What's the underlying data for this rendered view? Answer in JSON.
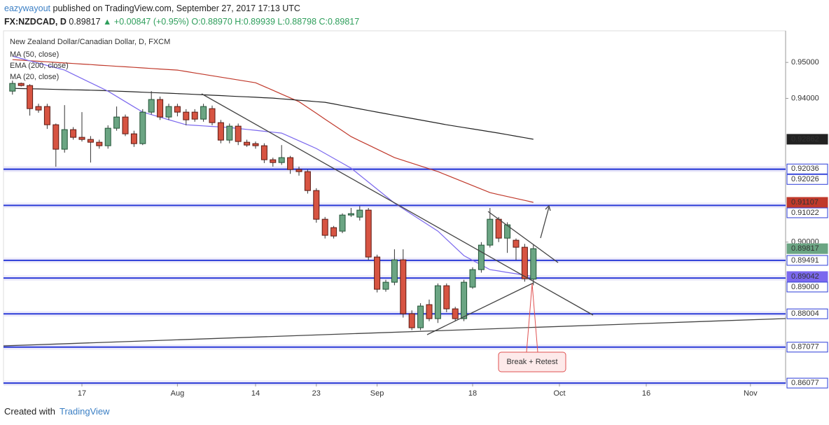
{
  "header": {
    "user": "eazywayout",
    "published": "published on TradingView.com, September 27, 2017 17:13 UTC",
    "symbol": "FX:NZDCAD, D",
    "price": "0.89817",
    "change": "▲ +0.00847 (+0.95%)",
    "ohlc": "O:0.88970 H:0.89939 L:0.88798 C:0.89817"
  },
  "footer": {
    "created": "Created with",
    "brand": "TradingView"
  },
  "chart_data": {
    "type": "candlestick",
    "title": "New Zealand Dollar/Canadian Dollar, D, FXCM",
    "annotation": "Break + Retest",
    "categories": [
      null,
      null,
      null,
      null,
      null,
      null,
      null,
      null,
      "17",
      null,
      null,
      null,
      null,
      null,
      null,
      null,
      null,
      null,
      null,
      "Aug",
      null,
      null,
      null,
      null,
      null,
      null,
      null,
      null,
      "14",
      null,
      null,
      null,
      null,
      null,
      null,
      "23",
      null,
      null,
      null,
      null,
      null,
      null,
      "Sep",
      null,
      null,
      null,
      null,
      null,
      null,
      null,
      null,
      null,
      null,
      "18",
      null,
      null,
      null,
      null,
      null,
      null,
      null,
      null,
      null,
      "Oct",
      null,
      null,
      null,
      null,
      null,
      null,
      null,
      null,
      null,
      "16",
      null,
      null,
      null,
      null,
      null,
      null,
      null,
      null,
      null,
      null,
      null,
      "Nov",
      null,
      null,
      null
    ],
    "open": [
      0.94201,
      0.94416,
      0.94357,
      0.93773,
      0.93773,
      0.93266,
      0.92585,
      0.9313,
      0.92916,
      0.92857,
      0.92779,
      0.92682,
      0.93169,
      0.93481,
      0.93013,
      0.9274,
      0.93617,
      0.93968,
      0.93481,
      0.93773,
      0.93617,
      0.93617,
      0.93422,
      0.93714,
      0.93325,
      0.92838,
      0.93227,
      0.92779,
      0.9274,
      0.92682,
      0.92292,
      0.92214,
      0.92351,
      0.9202,
      0.91961,
      0.91435,
      0.90636,
      0.90403,
      0.90305,
      0.90753,
      0.90695,
      0.9089,
      0.89585,
      0.88688,
      0.88883,
      0.89507,
      0.88007,
      0.87617,
      0.8826,
      0.8787,
      0.88786,
      0.88143,
      0.8787,
      0.88747,
      0.89234,
      0.89916,
      0.90636,
      0.9011,
      0.90052,
      0.89857,
      0.8897,
      null,
      null,
      null,
      null,
      null,
      null,
      null,
      null,
      null,
      null,
      null,
      null,
      null,
      null,
      null,
      null,
      null,
      null,
      null,
      null,
      null,
      null,
      null,
      null,
      null,
      null,
      null,
      null
    ],
    "high": [
      0.94494,
      0.9444,
      0.94396,
      0.9385,
      0.9385,
      0.933,
      0.93812,
      0.932,
      0.93617,
      0.9295,
      0.9285,
      0.9325,
      0.93773,
      0.9355,
      0.931,
      0.937,
      0.942,
      0.9405,
      0.9385,
      0.9385,
      0.937,
      0.937,
      0.9385,
      0.938,
      0.934,
      0.933,
      0.933,
      0.9285,
      0.928,
      0.9275,
      0.9235,
      0.927,
      0.924,
      0.921,
      0.9202,
      0.915,
      0.907,
      0.9045,
      0.908,
      0.9095,
      0.91,
      0.9095,
      0.8965,
      0.8895,
      0.898,
      0.898,
      0.881,
      0.883,
      0.884,
      0.8885,
      0.8885,
      0.882,
      0.8895,
      0.893,
      0.9,
      0.9095,
      0.907,
      0.9055,
      0.901,
      0.8995,
      0.89939,
      null,
      null,
      null,
      null,
      null,
      null,
      null,
      null,
      null,
      null,
      null,
      null,
      null,
      null,
      null,
      null,
      null,
      null,
      null,
      null,
      null,
      null,
      null,
      null,
      null,
      null,
      null,
      null
    ],
    "low": [
      0.94104,
      0.9433,
      0.9352,
      0.936,
      0.9315,
      0.92098,
      0.9249,
      0.9285,
      0.928,
      0.92214,
      0.926,
      0.926,
      0.931,
      0.9295,
      0.9265,
      0.927,
      0.9355,
      0.934,
      0.934,
      0.935,
      0.9325,
      0.9335,
      0.9335,
      0.9325,
      0.9275,
      0.9275,
      0.927,
      0.9265,
      0.926,
      0.922,
      0.921,
      0.9215,
      0.919,
      0.9185,
      0.9135,
      0.9054,
      0.901,
      0.901,
      0.9025,
      0.907,
      0.906,
      0.895,
      0.886,
      0.8862,
      0.888,
      0.879,
      0.8755,
      0.8755,
      0.878,
      0.8775,
      0.8805,
      0.878,
      0.878,
      0.887,
      0.8915,
      0.8985,
      0.9,
      0.897,
      0.895,
      0.889,
      0.88798,
      null,
      null,
      null,
      null,
      null,
      null,
      null,
      null,
      null,
      null,
      null,
      null,
      null,
      null,
      null,
      null,
      null,
      null,
      null,
      null,
      null,
      null,
      null,
      null,
      null,
      null,
      null,
      null
    ],
    "close": [
      0.94416,
      0.94357,
      0.93714,
      0.93675,
      0.93266,
      0.92585,
      0.9313,
      0.92916,
      0.92857,
      0.92779,
      0.92682,
      0.93169,
      0.93481,
      0.93013,
      0.9274,
      0.93617,
      0.93968,
      0.93481,
      0.93773,
      0.93617,
      0.93403,
      0.93422,
      0.93773,
      0.93325,
      0.92838,
      0.93227,
      0.92799,
      0.92701,
      0.92682,
      0.92292,
      0.92214,
      0.92351,
      0.9202,
      0.91961,
      0.91435,
      0.90636,
      0.90189,
      0.90169,
      0.90753,
      0.90792,
      0.9089,
      0.89585,
      0.88688,
      0.88883,
      0.89507,
      0.88007,
      0.87617,
      0.88221,
      0.8787,
      0.88786,
      0.88143,
      0.8787,
      0.88883,
      0.89234,
      0.89916,
      0.90636,
      0.9011,
      0.90481,
      0.89857,
      0.88981,
      0.89817,
      null,
      null,
      null,
      null,
      null,
      null,
      null,
      null,
      null,
      null,
      null,
      null,
      null,
      null,
      null,
      null,
      null,
      null,
      null,
      null,
      null,
      null,
      null,
      null,
      null,
      null,
      null,
      null
    ],
    "up_color": "#6ba583",
    "down_color": "#d75442",
    "up_edge": "#225437",
    "down_edge": "#5b1a13",
    "series": [
      {
        "name": "MA (50, close)",
        "color": "#c0392b",
        "values": [
          0.95078,
          0.95063,
          0.95047,
          0.95032,
          0.95017,
          0.95001,
          0.94986,
          0.9497,
          0.94955,
          0.9494,
          0.94924,
          0.94909,
          0.94893,
          0.94878,
          0.94863,
          0.94847,
          0.94832,
          0.94817,
          0.94801,
          0.94786,
          0.94747,
          0.94708,
          0.94669,
          0.9463,
          0.94591,
          0.94552,
          0.94513,
          0.94474,
          0.94435,
          0.9433,
          0.94225,
          0.94119,
          0.94014,
          0.93909,
          0.93747,
          0.93584,
          0.93422,
          0.9326,
          0.93098,
          0.92935,
          0.92818,
          0.92702,
          0.92585,
          0.92468,
          0.92351,
          0.92273,
          0.92195,
          0.92117,
          0.92039,
          0.91961,
          0.91864,
          0.91766,
          0.91669,
          0.91572,
          0.91474,
          0.91377,
          0.91323,
          0.91269,
          0.91215,
          0.91161,
          0.91107,
          null,
          null,
          null,
          null,
          null,
          null,
          null,
          null,
          null,
          null,
          null,
          null,
          null,
          null,
          null,
          null,
          null,
          null,
          null,
          null,
          null,
          null,
          null,
          null,
          null,
          null,
          null,
          null
        ]
      },
      {
        "name": "EMA (200, close)",
        "color": "#222222",
        "values": [
          0.94279,
          0.94273,
          0.94267,
          0.94262,
          0.94256,
          0.9425,
          0.94244,
          0.94238,
          0.94233,
          0.94227,
          0.94221,
          0.94211,
          0.94201,
          0.94192,
          0.94182,
          0.94172,
          0.94162,
          0.94152,
          0.94143,
          0.94133,
          0.94123,
          0.94111,
          0.941,
          0.94088,
          0.94077,
          0.94065,
          0.94053,
          0.94042,
          0.9403,
          0.94018,
          0.94007,
          0.93987,
          0.93968,
          0.93948,
          0.93929,
          0.93909,
          0.9389,
          0.93845,
          0.93799,
          0.93754,
          0.93708,
          0.93663,
          0.93617,
          0.93573,
          0.93529,
          0.93485,
          0.93442,
          0.93398,
          0.93354,
          0.9331,
          0.93266,
          0.93227,
          0.93188,
          0.9315,
          0.93111,
          0.93072,
          0.93033,
          0.9299,
          0.92948,
          0.92905,
          0.92862,
          null,
          null,
          null,
          null,
          null,
          null,
          null,
          null,
          null,
          null,
          null,
          null,
          null,
          null,
          null,
          null,
          null,
          null,
          null,
          null,
          null,
          null,
          null,
          null,
          null,
          null,
          null,
          null
        ]
      },
      {
        "name": "MA (20, close)",
        "color": "#7b68ee",
        "values": [
          0.95175,
          0.9511,
          0.95045,
          0.9498,
          0.94916,
          0.94851,
          0.94786,
          0.94669,
          0.94552,
          0.94435,
          0.94318,
          0.94201,
          0.94055,
          0.93909,
          0.93763,
          0.93617,
          0.93547,
          0.93477,
          0.93406,
          0.93336,
          0.93266,
          0.9325,
          0.93235,
          0.93219,
          0.93204,
          0.93188,
          0.93162,
          0.93136,
          0.93111,
          0.93085,
          0.93059,
          0.93033,
          0.92926,
          0.92819,
          0.92711,
          0.92604,
          0.92468,
          0.92332,
          0.92195,
          0.92059,
          0.91864,
          0.91669,
          0.91474,
          0.9128,
          0.91085,
          0.90929,
          0.90773,
          0.90617,
          0.90461,
          0.90305,
          0.90078,
          0.89851,
          0.89623,
          0.89493,
          0.89364,
          0.89234,
          0.89196,
          0.89157,
          0.89119,
          0.8908,
          0.89042,
          null,
          null,
          null,
          null,
          null,
          null,
          null,
          null,
          null,
          null,
          null,
          null,
          null,
          null,
          null,
          null,
          null,
          null,
          null,
          null,
          null,
          null,
          null,
          null,
          null,
          null,
          null,
          null
        ]
      }
    ],
    "levels": [
      0.92036,
      0.92026,
      0.91022,
      0.89491,
      {
        "value": 0.89,
        "label": "0.89000"
      },
      0.88004,
      0.87077,
      0.86077
    ],
    "level_color": "#2b3bd8",
    "ylim": [
      0.8606,
      0.9588
    ],
    "yticks": [
      {
        "value": 0.95,
        "label": "0.95000"
      },
      {
        "value": 0.94,
        "label": "0.94000"
      },
      {
        "value": 0.9,
        "label": "0.90000"
      }
    ]
  }
}
